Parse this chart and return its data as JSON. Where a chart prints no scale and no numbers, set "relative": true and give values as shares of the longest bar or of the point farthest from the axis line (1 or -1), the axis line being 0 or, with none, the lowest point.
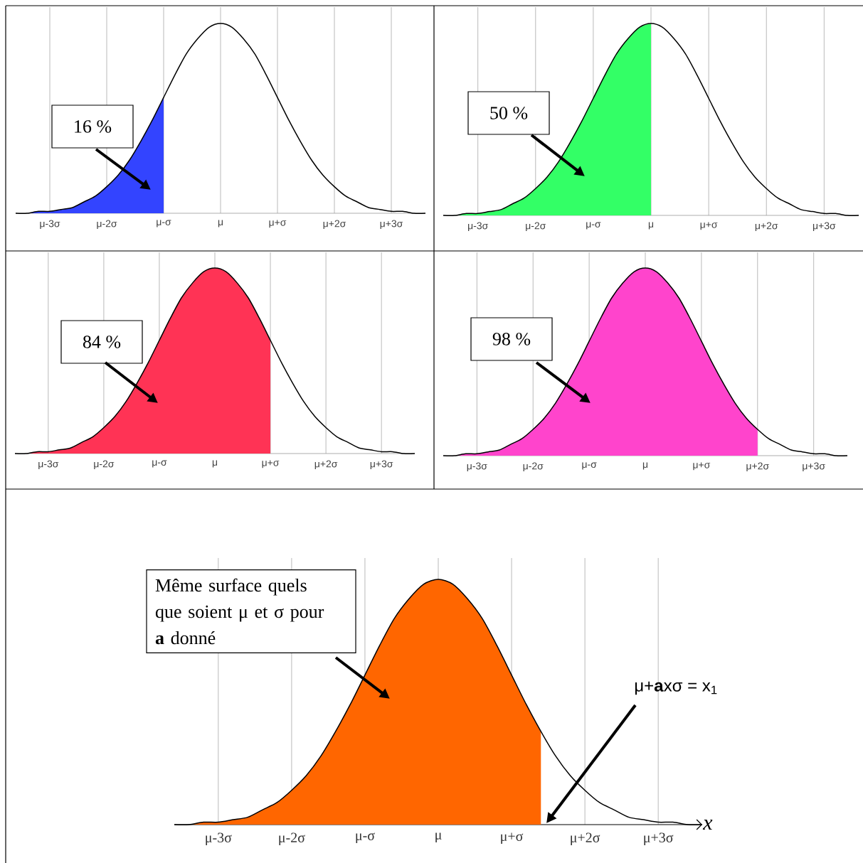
{
  "chart_data": [
    {
      "type": "area",
      "relative": true,
      "categories": [
        null,
        null,
        null,
        "μ-3σ",
        null,
        null,
        null,
        null,
        "μ-2σ",
        null,
        null,
        null,
        null,
        "μ-σ",
        null,
        null,
        null,
        null,
        "μ",
        null,
        null,
        null,
        null,
        "μ+σ",
        null,
        null,
        null,
        null,
        "μ+2σ",
        null,
        null,
        null,
        null,
        "μ+3σ",
        null,
        null,
        null
      ],
      "grid": "x",
      "annotations": [
        "16 %"
      ],
      "series": [
        {
          "type": "area",
          "color": "#3344ff",
          "values": [
            0,
            0,
            0.01,
            0.01,
            0.02,
            0.03,
            0.06,
            0.09,
            0.14,
            0.2,
            0.28,
            0.38,
            0.49,
            0.61,
            null,
            null,
            null,
            null,
            null,
            null,
            null,
            null,
            null,
            null,
            null,
            null,
            null,
            null,
            null,
            null,
            null,
            null,
            null,
            null,
            null,
            null,
            null
          ]
        },
        {
          "type": "line",
          "color": "#000000",
          "values": [
            0,
            0,
            0.01,
            0.01,
            0.02,
            0.03,
            0.06,
            0.09,
            0.14,
            0.2,
            0.28,
            0.38,
            0.49,
            0.61,
            0.73,
            0.84,
            0.92,
            0.98,
            1,
            0.98,
            0.92,
            0.84,
            0.73,
            0.61,
            0.49,
            0.38,
            0.28,
            0.2,
            0.14,
            0.09,
            0.06,
            0.03,
            0.02,
            0.01,
            0.01,
            0,
            0
          ]
        }
      ]
    },
    {
      "type": "area",
      "relative": true,
      "categories": [
        null,
        null,
        null,
        "μ-3σ",
        null,
        null,
        null,
        null,
        "μ-2σ",
        null,
        null,
        null,
        null,
        "μ-σ",
        null,
        null,
        null,
        null,
        "μ",
        null,
        null,
        null,
        null,
        "μ+σ",
        null,
        null,
        null,
        null,
        "μ+2σ",
        null,
        null,
        null,
        null,
        "μ+3σ",
        null,
        null,
        null
      ],
      "grid": "x",
      "annotations": [
        "50 %"
      ],
      "series": [
        {
          "type": "area",
          "color": "#33ff66",
          "values": [
            0,
            0,
            0.01,
            0.01,
            0.02,
            0.03,
            0.06,
            0.09,
            0.14,
            0.2,
            0.28,
            0.38,
            0.49,
            0.61,
            0.73,
            0.84,
            0.92,
            0.98,
            1,
            null,
            null,
            null,
            null,
            null,
            null,
            null,
            null,
            null,
            null,
            null,
            null,
            null,
            null,
            null,
            null,
            null,
            null
          ]
        },
        {
          "type": "line",
          "color": "#000000",
          "values": [
            0,
            0,
            0.01,
            0.01,
            0.02,
            0.03,
            0.06,
            0.09,
            0.14,
            0.2,
            0.28,
            0.38,
            0.49,
            0.61,
            0.73,
            0.84,
            0.92,
            0.98,
            1,
            0.98,
            0.92,
            0.84,
            0.73,
            0.61,
            0.49,
            0.38,
            0.28,
            0.2,
            0.14,
            0.09,
            0.06,
            0.03,
            0.02,
            0.01,
            0.01,
            0,
            0
          ]
        }
      ]
    },
    {
      "type": "area",
      "relative": true,
      "categories": [
        null,
        null,
        null,
        "μ-3σ",
        null,
        null,
        null,
        null,
        "μ-2σ",
        null,
        null,
        null,
        null,
        "μ-σ",
        null,
        null,
        null,
        null,
        "μ",
        null,
        null,
        null,
        null,
        "μ+σ",
        null,
        null,
        null,
        null,
        "μ+2σ",
        null,
        null,
        null,
        null,
        "μ+3σ",
        null,
        null,
        null
      ],
      "grid": "x",
      "annotations": [
        "84 %"
      ],
      "series": [
        {
          "type": "area",
          "color": "#ff3355",
          "values": [
            0,
            0,
            0.01,
            0.01,
            0.02,
            0.03,
            0.06,
            0.09,
            0.14,
            0.2,
            0.28,
            0.38,
            0.49,
            0.61,
            0.73,
            0.84,
            0.92,
            0.98,
            1,
            0.98,
            0.92,
            0.84,
            0.73,
            0.61,
            null,
            null,
            null,
            null,
            null,
            null,
            null,
            null,
            null,
            null,
            null,
            null,
            null
          ]
        },
        {
          "type": "line",
          "color": "#000000",
          "values": [
            0,
            0,
            0.01,
            0.01,
            0.02,
            0.03,
            0.06,
            0.09,
            0.14,
            0.2,
            0.28,
            0.38,
            0.49,
            0.61,
            0.73,
            0.84,
            0.92,
            0.98,
            1,
            0.98,
            0.92,
            0.84,
            0.73,
            0.61,
            0.49,
            0.38,
            0.28,
            0.2,
            0.14,
            0.09,
            0.06,
            0.03,
            0.02,
            0.01,
            0.01,
            0,
            0
          ]
        }
      ]
    },
    {
      "type": "area",
      "relative": true,
      "categories": [
        null,
        null,
        null,
        "μ-3σ",
        null,
        null,
        null,
        null,
        "μ-2σ",
        null,
        null,
        null,
        null,
        "μ-σ",
        null,
        null,
        null,
        null,
        "μ",
        null,
        null,
        null,
        null,
        "μ+σ",
        null,
        null,
        null,
        null,
        "μ+2σ",
        null,
        null,
        null,
        null,
        "μ+3σ",
        null,
        null,
        null
      ],
      "grid": "x",
      "annotations": [
        "98 %"
      ],
      "series": [
        {
          "type": "area",
          "color": "#ff44cc",
          "values": [
            0,
            0,
            0.01,
            0.01,
            0.02,
            0.03,
            0.06,
            0.09,
            0.14,
            0.2,
            0.28,
            0.38,
            0.49,
            0.61,
            0.73,
            0.84,
            0.92,
            0.98,
            1,
            0.98,
            0.92,
            0.84,
            0.73,
            0.61,
            0.49,
            0.38,
            0.28,
            0.2,
            0.14,
            null,
            null,
            null,
            null,
            null,
            null,
            null,
            null
          ]
        },
        {
          "type": "line",
          "color": "#000000",
          "values": [
            0,
            0,
            0.01,
            0.01,
            0.02,
            0.03,
            0.06,
            0.09,
            0.14,
            0.2,
            0.28,
            0.38,
            0.49,
            0.61,
            0.73,
            0.84,
            0.92,
            0.98,
            1,
            0.98,
            0.92,
            0.84,
            0.73,
            0.61,
            0.49,
            0.38,
            0.28,
            0.2,
            0.14,
            0.09,
            0.06,
            0.03,
            0.02,
            0.01,
            0.01,
            0,
            0
          ]
        }
      ]
    },
    {
      "type": "area",
      "relative": true,
      "categories": [
        null,
        null,
        null,
        "μ-3σ",
        null,
        null,
        null,
        null,
        "μ-2σ",
        null,
        null,
        null,
        null,
        "μ-σ",
        null,
        null,
        null,
        null,
        "μ",
        null,
        null,
        null,
        null,
        "μ+σ",
        null,
        null,
        null,
        null,
        "μ+2σ",
        null,
        null,
        null,
        null,
        "μ+3σ",
        null,
        null,
        null
      ],
      "grid": "x",
      "xlabel": "x",
      "annotations": [
        "Même surface quels que soient μ et σ pour **a** donné",
        "μ+**a**xσ = x$_{1}$"
      ],
      "series": [
        {
          "type": "area",
          "color": "#ff6600",
          "values": [
            0,
            0,
            0.01,
            0.01,
            0.02,
            0.03,
            0.06,
            0.09,
            0.14,
            0.2,
            0.28,
            0.38,
            0.49,
            0.61,
            0.73,
            0.84,
            0.92,
            0.98,
            1,
            0.98,
            0.92,
            0.84,
            0.73,
            0.61,
            0.49,
            0.38,
            null,
            null,
            null,
            null,
            null,
            null,
            null,
            null,
            null,
            null,
            null
          ]
        },
        {
          "type": "line",
          "color": "#000000",
          "values": [
            0,
            0,
            0.01,
            0.01,
            0.02,
            0.03,
            0.06,
            0.09,
            0.14,
            0.2,
            0.28,
            0.38,
            0.49,
            0.61,
            0.73,
            0.84,
            0.92,
            0.98,
            1,
            0.98,
            0.92,
            0.84,
            0.73,
            0.61,
            0.49,
            0.38,
            0.28,
            0.2,
            0.14,
            0.09,
            0.06,
            0.03,
            0.02,
            0.01,
            0.01,
            0,
            0
          ]
        }
      ]
    }
  ]
}
